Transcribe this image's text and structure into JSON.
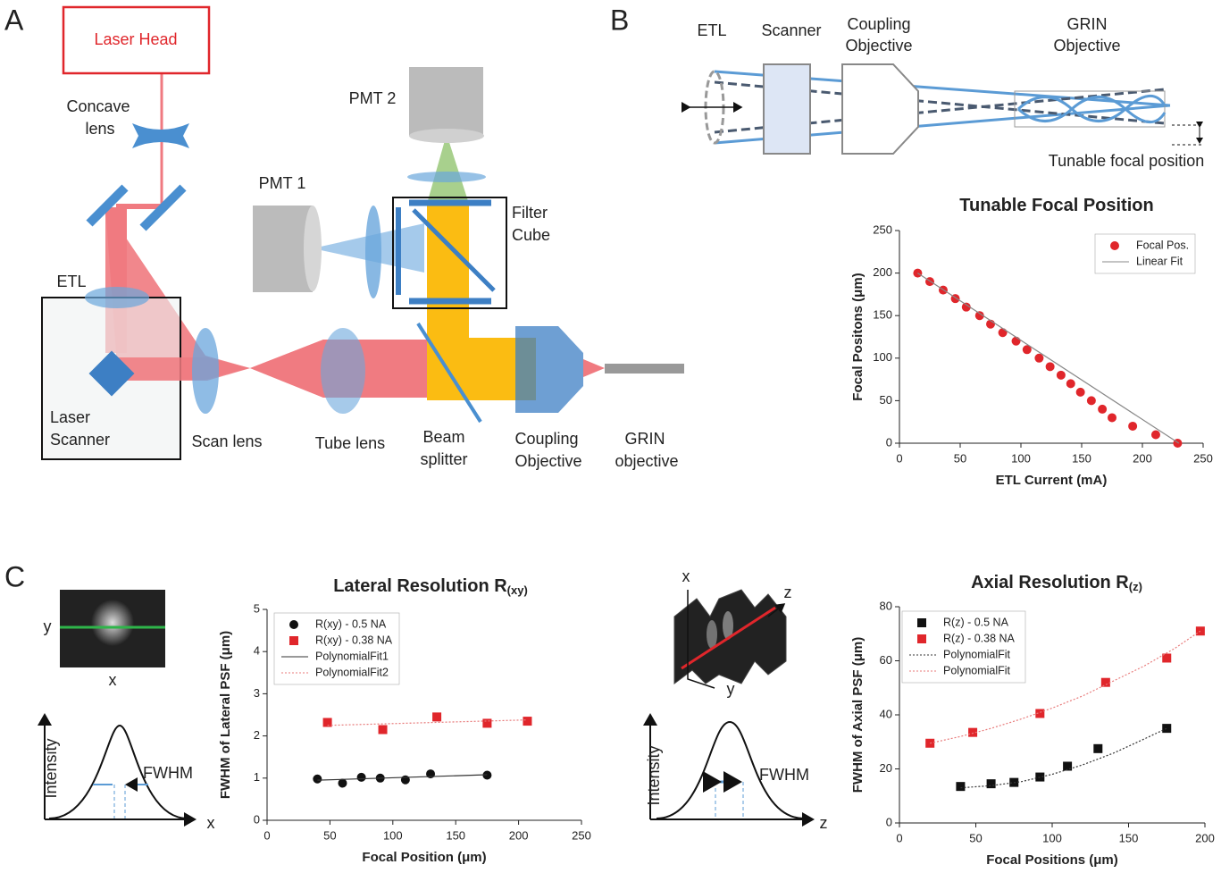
{
  "panel_labels": [
    "A",
    "B",
    "C"
  ],
  "diagram_a": {
    "laser_head": "Laser Head",
    "concave_lens": [
      "Concave",
      "lens"
    ],
    "etl": "ETL",
    "laser_scanner": [
      "Laser",
      "Scanner"
    ],
    "scan_lens": "Scan lens",
    "tube_lens": "Tube lens",
    "beam_splitter": [
      "Beam",
      "splitter"
    ],
    "coupling_objective": [
      "Coupling",
      "Objective"
    ],
    "grin_objective": [
      "GRIN",
      "objective"
    ],
    "pmt1": "PMT 1",
    "pmt2": "PMT 2",
    "filter_cube": [
      "Filter",
      "Cube"
    ]
  },
  "diagram_b": {
    "etl": "ETL",
    "scanner": "Scanner",
    "coupling_objective": [
      "Coupling",
      "Objective"
    ],
    "grin_objective": [
      "GRIN",
      "Objective"
    ],
    "tunable": "Tunable focal position"
  },
  "diagram_c": {
    "left": {
      "image_y": "y",
      "image_x": "x",
      "intensity": "Intensity",
      "fwhm": "FWHM",
      "axis": "x"
    },
    "right": {
      "image_x": "x",
      "image_z": "z",
      "image_y": "y",
      "intensity": "Intensity",
      "fwhm": "FWHM",
      "axis": "z"
    }
  },
  "chart_data": [
    {
      "type": "scatter",
      "title": "Tunable Focal Position",
      "x_label": "ETL Current (mA)",
      "y_label": "Focal Positons (μm)",
      "xlim": [
        0,
        250
      ],
      "xticks": [
        0,
        50,
        100,
        150,
        200,
        250
      ],
      "ylim": [
        0,
        250
      ],
      "yticks": [
        0,
        50,
        100,
        150,
        200,
        250
      ],
      "series": [
        {
          "name": "Focal Pos.",
          "color": "#e0262b",
          "marker": "circle",
          "x": [
            15,
            25,
            36,
            46,
            55,
            66,
            75,
            85,
            96,
            105,
            115,
            124,
            133,
            141,
            149,
            158,
            167,
            175,
            192,
            211,
            229
          ],
          "values": [
            200,
            190,
            180,
            170,
            160,
            150,
            140,
            130,
            120,
            110,
            100,
            90,
            80,
            70,
            60,
            50,
            40,
            30,
            20,
            10,
            0
          ]
        },
        {
          "name": "Linear Fit",
          "color": "#888888",
          "line": "solid",
          "x": [
            15,
            230
          ],
          "values": [
            200,
            0
          ]
        }
      ]
    },
    {
      "type": "scatter",
      "title": "Lateral Resolution R",
      "title_subscript": "(xy)",
      "x_label": "Focal Position (μm)",
      "y_label": "FWHM of Lateral PSF (μm)",
      "xlim": [
        0,
        250
      ],
      "xticks": [
        0,
        50,
        100,
        150,
        200,
        250
      ],
      "ylim": [
        0,
        5
      ],
      "yticks": [
        0,
        1,
        2,
        3,
        4,
        5
      ],
      "series": [
        {
          "name": "R(xy) -  0.5  NA",
          "color": "#111111",
          "marker": "circle",
          "x": [
            40,
            60,
            75,
            90,
            110,
            130,
            175
          ],
          "values": [
            0.98,
            0.88,
            1.02,
            1.0,
            0.96,
            1.1,
            1.07
          ]
        },
        {
          "name": "R(xy) - 0.38 NA",
          "color": "#e0262b",
          "marker": "square",
          "x": [
            48,
            92,
            135,
            175,
            207
          ],
          "values": [
            2.32,
            2.15,
            2.45,
            2.3,
            2.35
          ]
        },
        {
          "name": "PolynomialFit1",
          "color": "#333333",
          "line": "solid",
          "x": [
            40,
            175
          ],
          "values": [
            0.95,
            1.08
          ]
        },
        {
          "name": "PolynomialFit2",
          "color": "#e87a7a",
          "line": "dotted",
          "x": [
            48,
            207
          ],
          "values": [
            2.25,
            2.38
          ]
        }
      ]
    },
    {
      "type": "scatter",
      "title": "Axial Resolution R",
      "title_subscript": "(z)",
      "x_label": "Focal Positions (μm)",
      "y_label": "FWHM of Axial PSF (μm)",
      "xlim": [
        0,
        200
      ],
      "xticks": [
        0,
        50,
        100,
        150,
        200
      ],
      "ylim": [
        0,
        80
      ],
      "yticks": [
        0,
        20,
        40,
        60,
        80
      ],
      "series": [
        {
          "name": "R(z) -  0.5  NA",
          "color": "#111111",
          "marker": "square",
          "x": [
            40,
            60,
            75,
            92,
            110,
            130,
            175
          ],
          "values": [
            13.5,
            14.5,
            15,
            17,
            21,
            27.5,
            35
          ]
        },
        {
          "name": "R(z) - 0.38 NA",
          "color": "#e0262b",
          "marker": "square",
          "x": [
            20,
            48,
            92,
            135,
            175,
            197
          ],
          "values": [
            29.5,
            33.5,
            40.5,
            52,
            61,
            71
          ]
        },
        {
          "name": "PolynomialFit",
          "color": "#333333",
          "line": "dotted",
          "x": [
            40,
            60,
            80,
            100,
            120,
            140,
            160,
            175
          ],
          "values": [
            13,
            13.8,
            15.3,
            18,
            21.5,
            25.8,
            31,
            35
          ]
        },
        {
          "name": "PolynomialFit",
          "color": "#e87a7a",
          "line": "dotted",
          "x": [
            20,
            40,
            60,
            80,
            100,
            120,
            140,
            160,
            180,
            197
          ],
          "values": [
            29.5,
            32,
            35,
            38.5,
            42.5,
            47,
            52.5,
            58,
            64.5,
            71
          ]
        }
      ]
    }
  ]
}
